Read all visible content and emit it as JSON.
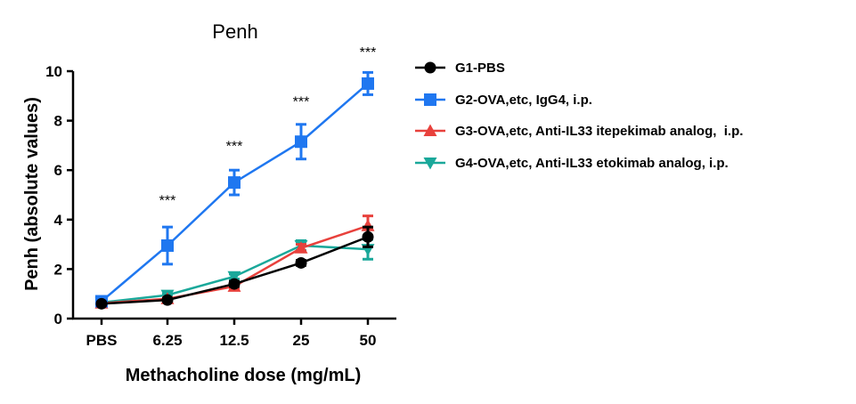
{
  "chart_data": {
    "type": "line",
    "title": "Penh",
    "xlabel": "Methacholine dose (mg/mL)",
    "ylabel": "Penh (absolute values)",
    "categories": [
      "PBS",
      "6.25",
      "12.5",
      "25",
      "50"
    ],
    "ylim": [
      0,
      10
    ],
    "yticks": [
      "0",
      "2",
      "4",
      "6",
      "8",
      "10"
    ],
    "legend_position": "right",
    "grid": false,
    "annotations": [
      {
        "category": "6.25",
        "text": "***",
        "y": 4.8
      },
      {
        "category": "12.5",
        "text": "***",
        "y": 7.0
      },
      {
        "category": "25",
        "text": "***",
        "y": 8.8
      },
      {
        "category": "50",
        "text": "***",
        "y": 10.8
      }
    ],
    "series": [
      {
        "name": "G1-PBS",
        "color": "#000000",
        "marker": "circle",
        "values": [
          0.6,
          0.75,
          1.4,
          2.25,
          3.3
        ],
        "errors": [
          0.05,
          0.05,
          0.1,
          0.1,
          0.4
        ]
      },
      {
        "name": "G2-OVA,etc, IgG4, i.p.",
        "color": "#1f77f0",
        "marker": "square",
        "values": [
          0.7,
          2.95,
          5.5,
          7.15,
          9.5
        ],
        "errors": [
          0.1,
          0.75,
          0.5,
          0.7,
          0.45
        ]
      },
      {
        "name": "G3-OVA,etc, Anti-IL33 itepekimab analog,  i.p.",
        "color": "#e8413c",
        "marker": "triangle-up",
        "values": [
          0.62,
          0.8,
          1.3,
          2.85,
          3.75
        ],
        "errors": [
          0.05,
          0.05,
          0.1,
          0.15,
          0.4
        ]
      },
      {
        "name": "G4-OVA,etc, Anti-IL33 etokimab analog, i.p.",
        "color": "#1aa89a",
        "marker": "triangle-down",
        "values": [
          0.65,
          0.95,
          1.7,
          2.95,
          2.8
        ],
        "errors": [
          0.05,
          0.05,
          0.1,
          0.2,
          0.4
        ]
      }
    ]
  }
}
